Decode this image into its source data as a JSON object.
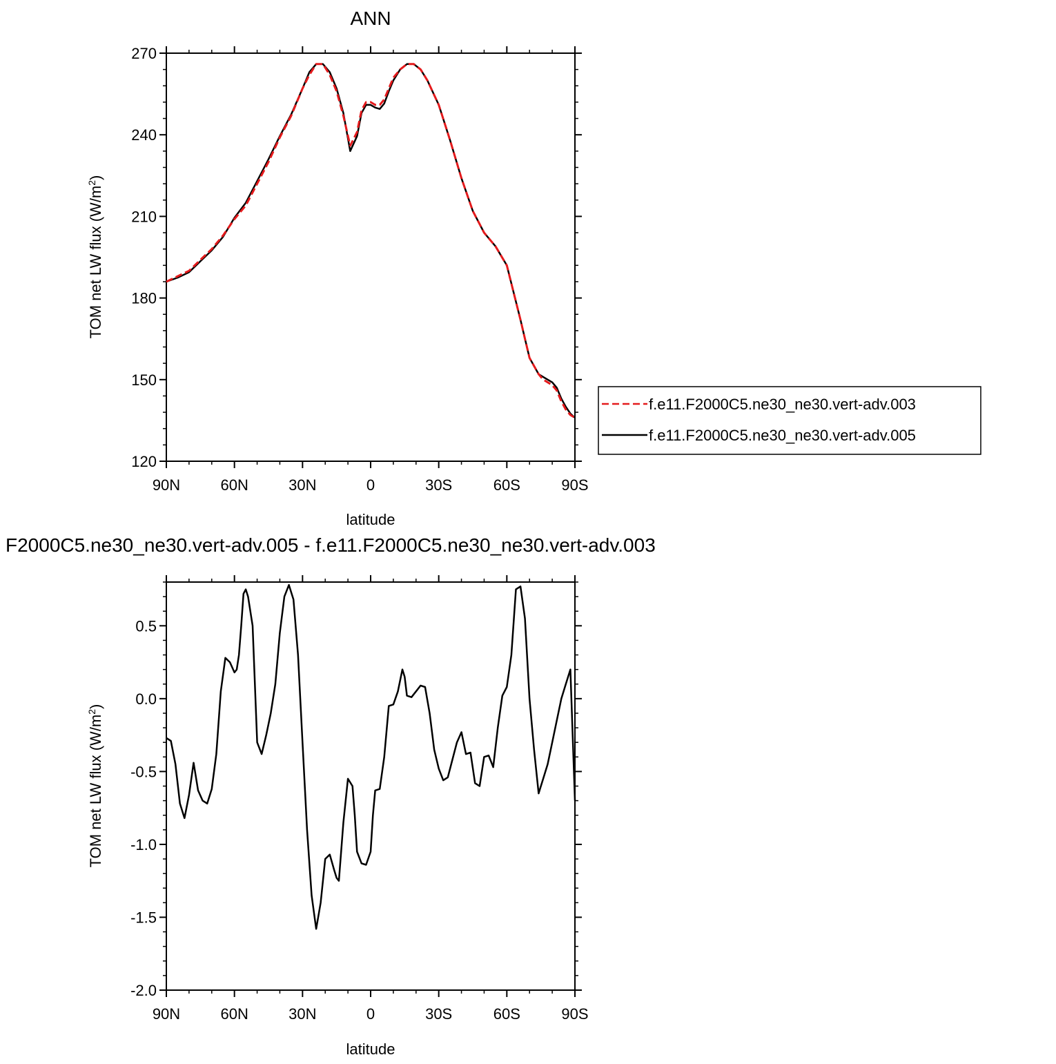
{
  "chart_data": [
    {
      "type": "line",
      "title": "ANN",
      "xlabel": "latitude",
      "ylabel_main": "TOM net LW flux (W/m",
      "ylabel_sup": "2",
      "ylabel_tail": ")",
      "xlim": [
        -90,
        90
      ],
      "ylim": [
        120,
        270
      ],
      "x_ticks": [
        -90,
        -60,
        -30,
        0,
        30,
        60,
        90
      ],
      "x_tick_labels": [
        "90N",
        "60N",
        "30N",
        "0",
        "30S",
        "60S",
        "90S"
      ],
      "y_ticks": [
        120,
        150,
        180,
        210,
        240,
        270
      ],
      "y_tick_labels": [
        "120",
        "150",
        "180",
        "210",
        "240",
        "270"
      ],
      "legend_position": "right-outside",
      "series": [
        {
          "name": "f.e11.F2000C5.ne30_ne30.vert-adv.003",
          "color": "#e41a1c",
          "style": "dashed",
          "x": [
            -90,
            -85,
            -80,
            -75,
            -70,
            -65,
            -60,
            -55,
            -50,
            -45,
            -40,
            -35,
            -30,
            -27,
            -24,
            -21,
            -18,
            -15,
            -12,
            -9,
            -6,
            -4,
            -2,
            0,
            2,
            4,
            6,
            8,
            10,
            13,
            16,
            19,
            22,
            25,
            30,
            35,
            40,
            45,
            50,
            55,
            60,
            63,
            66,
            68,
            70,
            72,
            74,
            76,
            78,
            80,
            82,
            84,
            86,
            88,
            90
          ],
          "y": [
            186,
            188,
            190,
            194,
            198,
            203,
            209,
            214,
            222,
            230,
            239,
            247,
            257,
            262,
            266,
            266,
            262,
            256,
            247,
            236,
            241,
            249,
            252,
            252,
            251,
            251,
            253,
            257,
            261,
            264,
            266,
            266,
            264,
            260,
            251,
            238,
            224,
            212,
            204,
            199,
            192,
            182,
            172,
            165,
            158,
            155,
            152,
            150,
            149,
            148,
            146,
            142,
            139,
            137,
            136
          ]
        },
        {
          "name": "f.e11.F2000C5.ne30_ne30.vert-adv.005",
          "color": "#000000",
          "style": "solid",
          "x": [
            -90,
            -85,
            -80,
            -75,
            -70,
            -65,
            -60,
            -55,
            -50,
            -45,
            -40,
            -35,
            -30,
            -27,
            -24,
            -21,
            -18,
            -15,
            -12,
            -9,
            -6,
            -4,
            -2,
            0,
            2,
            4,
            6,
            8,
            10,
            13,
            16,
            19,
            22,
            25,
            30,
            35,
            40,
            45,
            50,
            55,
            60,
            63,
            66,
            68,
            70,
            72,
            74,
            76,
            78,
            80,
            82,
            84,
            86,
            88,
            90
          ],
          "y": [
            186,
            187.5,
            189.5,
            193.5,
            197.5,
            202.5,
            209.5,
            215,
            223,
            231,
            239.5,
            247.5,
            257,
            263,
            266,
            266,
            263,
            257,
            248,
            234,
            239.5,
            248,
            251,
            251,
            250,
            249.5,
            251.5,
            256,
            260,
            264,
            266,
            266,
            264,
            260,
            251,
            238,
            224,
            212,
            204,
            199,
            192,
            182,
            172,
            165,
            158,
            155,
            152,
            151,
            150,
            149,
            147,
            143,
            140,
            137.5,
            136
          ]
        }
      ]
    },
    {
      "type": "line",
      "title": "F2000C5.ne30_ne30.vert-adv.005 - f.e11.F2000C5.ne30_ne30.vert-adv.003",
      "xlabel": "latitude",
      "ylabel_main": "TOM net LW flux (W/m",
      "ylabel_sup": "2",
      "ylabel_tail": ")",
      "xlim": [
        -90,
        90
      ],
      "ylim": [
        -2.0,
        0.8
      ],
      "x_ticks": [
        -90,
        -60,
        -30,
        0,
        30,
        60,
        90
      ],
      "x_tick_labels": [
        "90N",
        "60N",
        "30N",
        "0",
        "30S",
        "60S",
        "90S"
      ],
      "y_ticks": [
        -2.0,
        -1.5,
        -1.0,
        -0.5,
        0.0,
        0.5
      ],
      "y_tick_labels": [
        "-2.0",
        "-1.5",
        "-1.0",
        "-0.5",
        "0.0",
        "0.5"
      ],
      "series": [
        {
          "color": "#000000",
          "style": "solid",
          "x": [
            -90,
            -88,
            -86,
            -84,
            -82,
            -80,
            -78,
            -76,
            -74,
            -72,
            -70,
            -68,
            -66,
            -64,
            -62,
            -60,
            -59,
            -58,
            -57,
            -56,
            -55,
            -54,
            -52,
            -50,
            -48,
            -46,
            -44,
            -42,
            -40,
            -38,
            -36,
            -34,
            -32,
            -30,
            -28,
            -26,
            -24,
            -22,
            -20,
            -18,
            -16,
            -15,
            -14,
            -12,
            -10,
            -8,
            -7,
            -6,
            -4,
            -2,
            0,
            1,
            2,
            4,
            6,
            8,
            10,
            12,
            14,
            15,
            16,
            18,
            20,
            22,
            24,
            26,
            28,
            30,
            32,
            34,
            36,
            38,
            40,
            42,
            44,
            46,
            48,
            50,
            52,
            54,
            56,
            58,
            60,
            62,
            64,
            66,
            68,
            70,
            72,
            74,
            76,
            78,
            80,
            82,
            84,
            86,
            88,
            90
          ],
          "y": [
            -0.27,
            -0.29,
            -0.45,
            -0.72,
            -0.82,
            -0.66,
            -0.44,
            -0.63,
            -0.7,
            -0.72,
            -0.62,
            -0.38,
            0.05,
            0.28,
            0.25,
            0.18,
            0.2,
            0.3,
            0.5,
            0.72,
            0.75,
            0.7,
            0.5,
            -0.3,
            -0.38,
            -0.25,
            -0.1,
            0.1,
            0.45,
            0.7,
            0.78,
            0.68,
            0.3,
            -0.3,
            -0.9,
            -1.35,
            -1.58,
            -1.4,
            -1.1,
            -1.07,
            -1.18,
            -1.23,
            -1.25,
            -0.85,
            -0.55,
            -0.6,
            -0.8,
            -1.05,
            -1.13,
            -1.14,
            -1.05,
            -0.8,
            -0.63,
            -0.62,
            -0.4,
            -0.05,
            -0.04,
            0.05,
            0.2,
            0.15,
            0.02,
            0.01,
            0.05,
            0.09,
            0.08,
            -0.1,
            -0.35,
            -0.48,
            -0.56,
            -0.54,
            -0.42,
            -0.3,
            -0.23,
            -0.38,
            -0.37,
            -0.58,
            -0.6,
            -0.4,
            -0.39,
            -0.47,
            -0.2,
            0.02,
            0.08,
            0.3,
            0.75,
            0.77,
            0.55,
            0.0,
            -0.35,
            -0.65,
            -0.55,
            -0.45,
            -0.3,
            -0.15,
            0.0,
            0.1,
            0.2,
            -0.7
          ]
        }
      ]
    }
  ]
}
